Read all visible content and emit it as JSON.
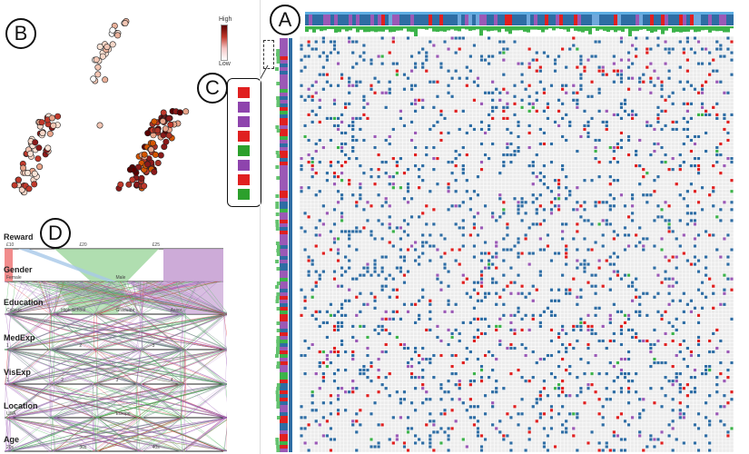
{
  "panels": {
    "a": "A",
    "b": "B",
    "c": "C",
    "d": "D"
  },
  "color_key": {
    "high": "High",
    "low": "Low"
  },
  "legend_c": {
    "swatches": [
      "#e02020",
      "#8e44ad",
      "#8e44ad",
      "#e02020",
      "#2ca02c",
      "#8e44ad",
      "#e02020",
      "#2ca02c"
    ]
  },
  "colors": {
    "red": "#e02020",
    "purple": "#9b59b6",
    "green": "#3cb34a",
    "blue": "#2e6da4",
    "cell_bg": "#d9d9d9",
    "light_purple": "#c8a2d4",
    "light_green": "#8fd08f",
    "pink": "#f08080"
  },
  "parallel_coords": {
    "dimensions": [
      {
        "name": "Reward",
        "ticks": [
          "£10",
          "£20",
          "£25"
        ]
      },
      {
        "name": "Gender",
        "ticks": [
          "Female",
          "Male"
        ]
      },
      {
        "name": "Education",
        "ticks": [
          "College",
          "High School",
          "Graduate",
          "Assoc."
        ]
      },
      {
        "name": "MedExp",
        "ticks": [
          "1",
          "2",
          "3"
        ]
      },
      {
        "name": "VisExp",
        "ticks": [
          "1",
          "2",
          "3",
          "4"
        ]
      },
      {
        "name": "Location",
        "ticks": [
          "USA",
          "Europe"
        ]
      },
      {
        "name": "Age",
        "ticks": [
          "20s",
          "30s",
          "40s"
        ]
      }
    ]
  }
}
